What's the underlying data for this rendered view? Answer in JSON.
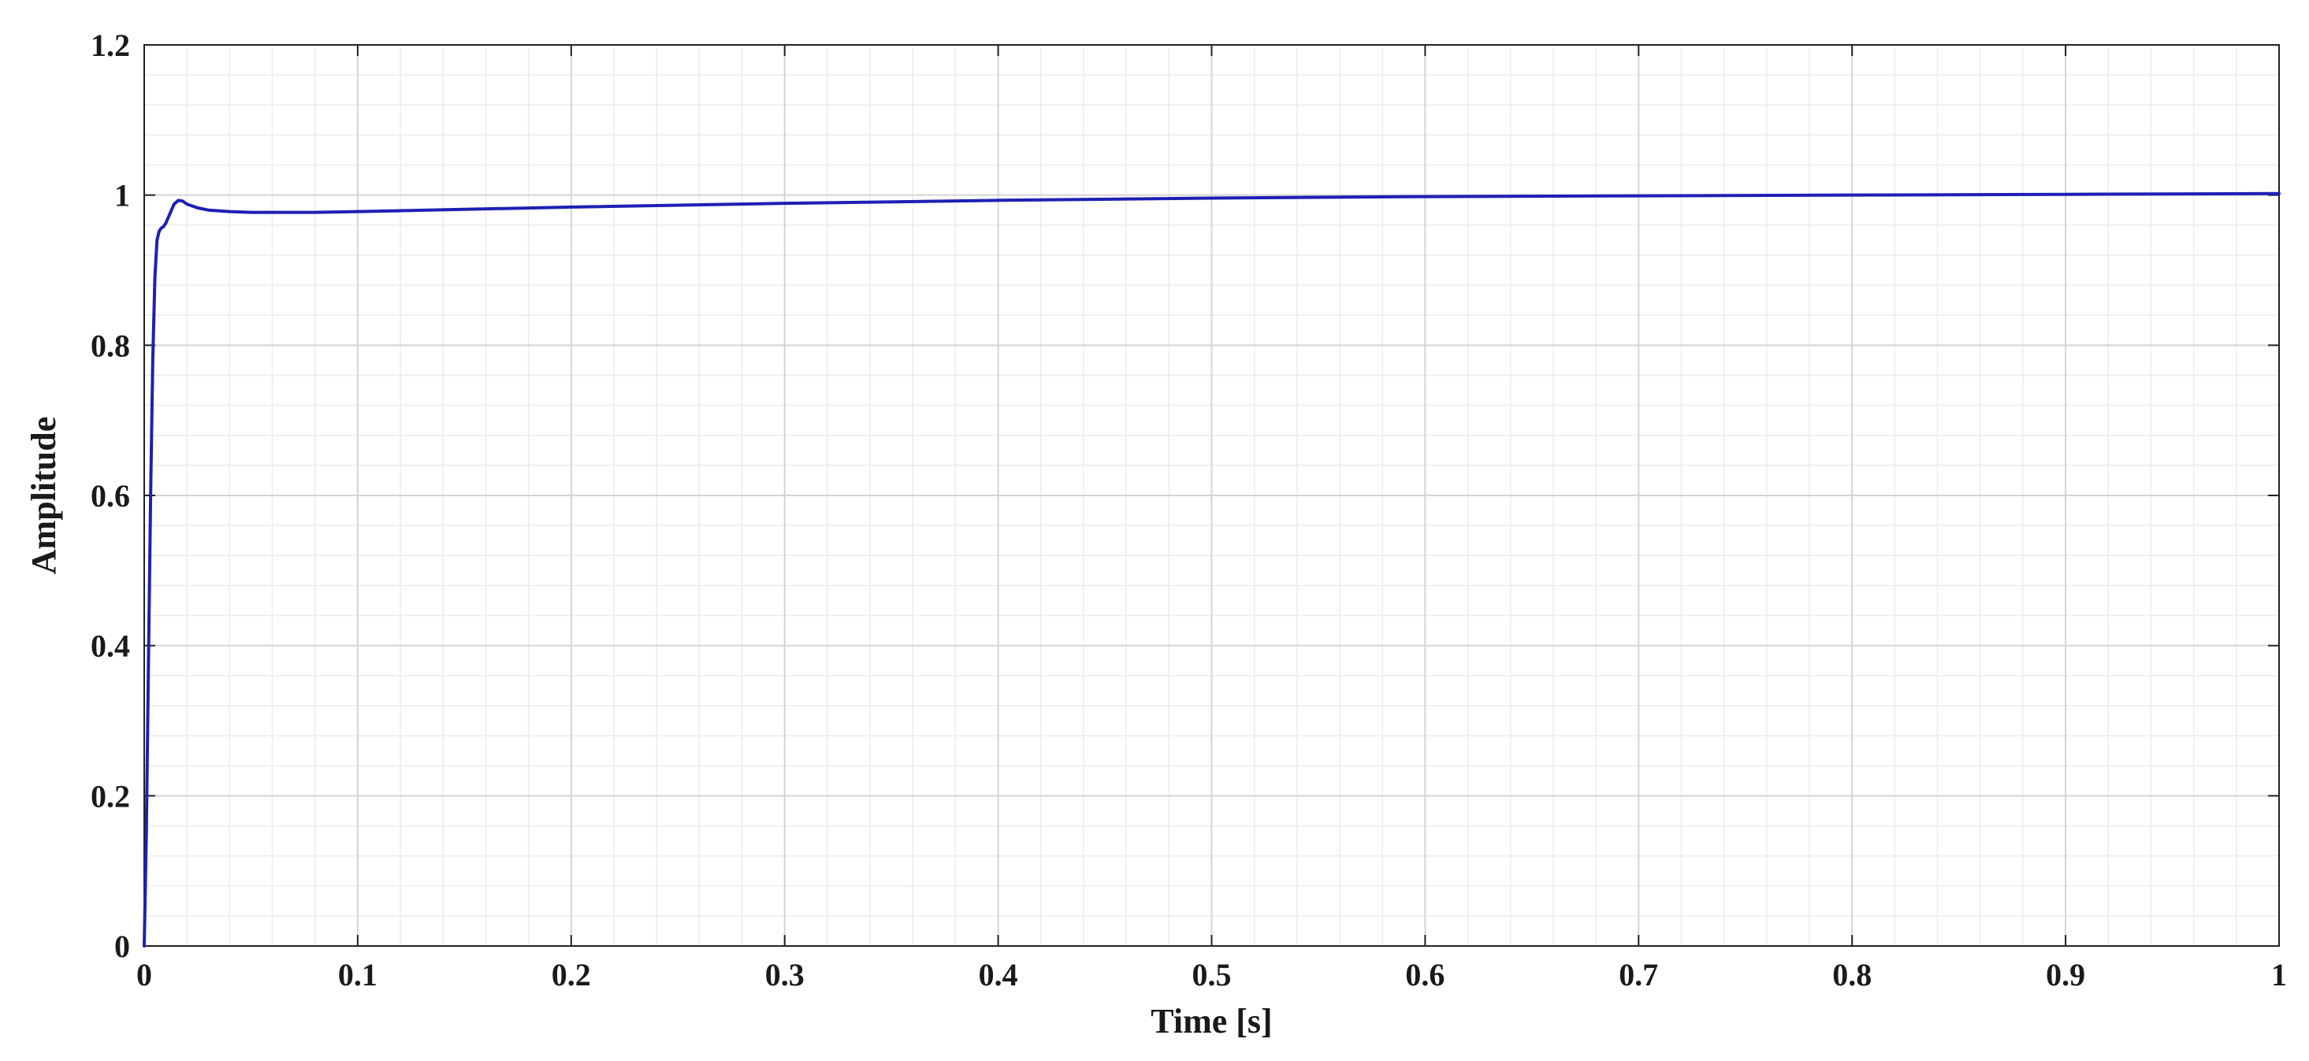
{
  "chart_data": {
    "type": "line",
    "title": "",
    "xlabel": "Time [s]",
    "ylabel": "Amplitude",
    "xlim": [
      0,
      1
    ],
    "ylim": [
      0,
      1.2
    ],
    "x_ticks": [
      0,
      0.1,
      0.2,
      0.3,
      0.4,
      0.5,
      0.6,
      0.7,
      0.8,
      0.9,
      1
    ],
    "x_tick_labels": [
      "0",
      "0.1",
      "0.2",
      "0.3",
      "0.4",
      "0.5",
      "0.6",
      "0.7",
      "0.8",
      "0.9",
      "1"
    ],
    "y_ticks": [
      0,
      0.2,
      0.4,
      0.6,
      0.8,
      1,
      1.2
    ],
    "y_tick_labels": [
      "0",
      "0.2",
      "0.4",
      "0.6",
      "0.8",
      "1",
      "1.2"
    ],
    "grid": true,
    "minor_grid": true,
    "legend": "none",
    "colors": {
      "series": "#1f1fb4",
      "grid_major": "#d4d4d4",
      "grid_minor": "#ececec",
      "axes": "#222222"
    },
    "series": [
      {
        "x": [
          0,
          0.001,
          0.002,
          0.003,
          0.004,
          0.005,
          0.006,
          0.007,
          0.008,
          0.009,
          0.01,
          0.012,
          0.014,
          0.016,
          0.018,
          0.02,
          0.025,
          0.03,
          0.04,
          0.05,
          0.06,
          0.08,
          0.1,
          0.15,
          0.2,
          0.3,
          0.4,
          0.5,
          0.6,
          0.7,
          0.8,
          0.9,
          1.0
        ],
        "y": [
          0,
          0.15,
          0.38,
          0.6,
          0.78,
          0.89,
          0.94,
          0.952,
          0.956,
          0.958,
          0.962,
          0.975,
          0.988,
          0.993,
          0.992,
          0.988,
          0.983,
          0.98,
          0.978,
          0.977,
          0.977,
          0.977,
          0.978,
          0.981,
          0.984,
          0.989,
          0.993,
          0.996,
          0.998,
          0.999,
          1.0,
          1.001,
          1.002
        ]
      }
    ]
  }
}
